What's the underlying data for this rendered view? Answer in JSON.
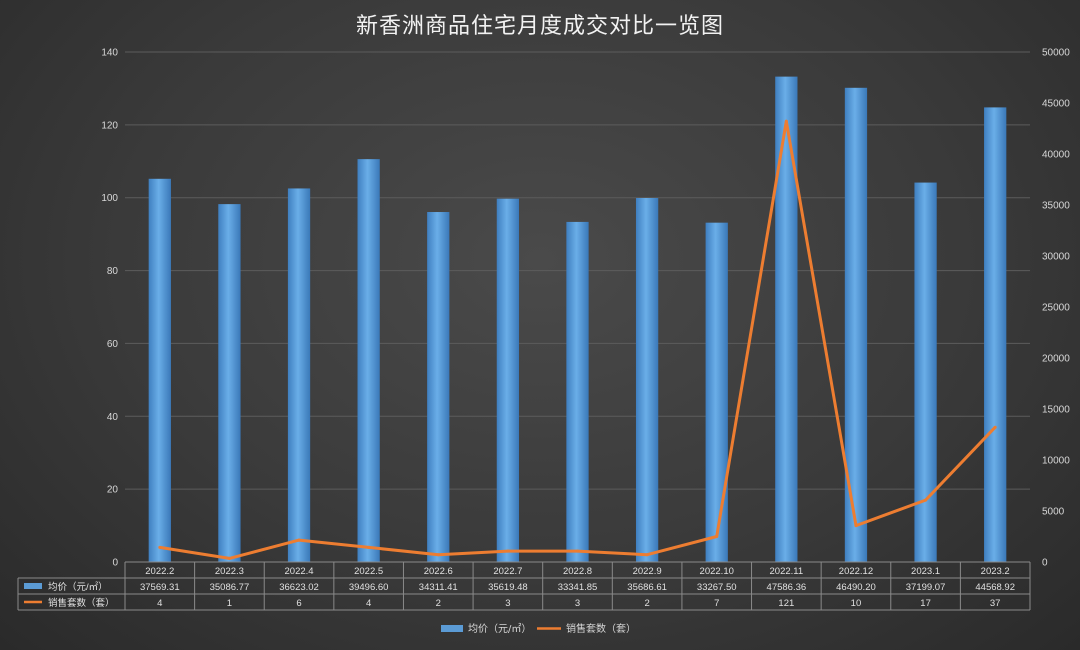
{
  "chart_data": {
    "type": "bar",
    "title": "新香洲商品住宅月度成交对比一览图",
    "categories": [
      "2022.2",
      "2022.3",
      "2022.4",
      "2022.5",
      "2022.6",
      "2022.7",
      "2022.8",
      "2022.9",
      "2022.10",
      "2022.11",
      "2022.12",
      "2023.1",
      "2023.2"
    ],
    "series": [
      {
        "name": "均价（元/㎡）",
        "type": "bar",
        "axis": "right",
        "values": [
          37569.31,
          35086.77,
          36623.02,
          39496.6,
          34311.41,
          35619.48,
          33341.85,
          35686.61,
          33267.5,
          47586.36,
          46490.2,
          37199.07,
          44568.92
        ],
        "labels": [
          "37569.31",
          "35086.77",
          "36623.02",
          "39496.60",
          "34311.41",
          "35619.48",
          "33341.85",
          "35686.61",
          "33267.50",
          "47586.36",
          "46490.20",
          "37199.07",
          "44568.92"
        ],
        "color": "#5b9bd5"
      },
      {
        "name": "销售套数（套）",
        "type": "line",
        "axis": "left",
        "values": [
          4,
          1,
          6,
          4,
          2,
          3,
          3,
          2,
          7,
          121,
          10,
          17,
          37
        ],
        "color": "#ed7d31"
      }
    ],
    "y_left": {
      "ylim": [
        0,
        140
      ],
      "ticks": [
        0,
        20,
        40,
        60,
        80,
        100,
        120,
        140
      ]
    },
    "y_right": {
      "ylim": [
        0,
        50000
      ],
      "ticks": [
        0,
        5000,
        10000,
        15000,
        20000,
        25000,
        30000,
        35000,
        40000,
        45000,
        50000
      ]
    },
    "grid": true,
    "legend": "bottom",
    "data_table": true
  }
}
